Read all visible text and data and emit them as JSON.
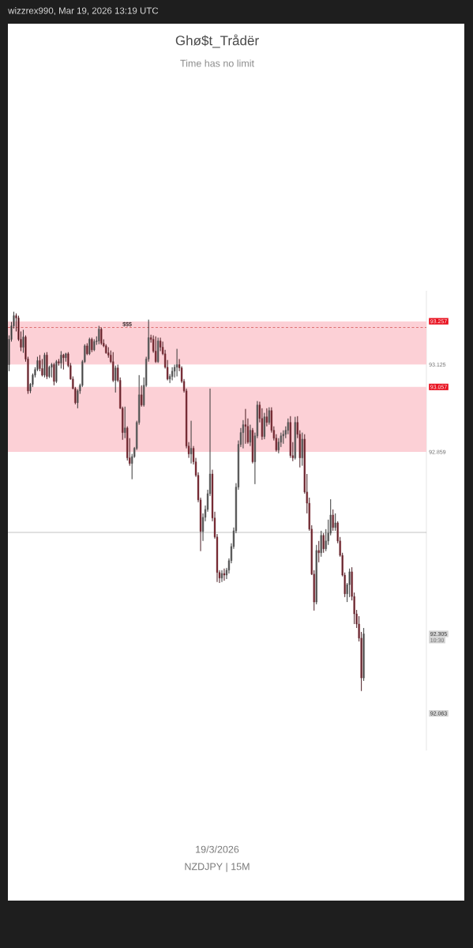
{
  "chart_data": {
    "type": "candlestick",
    "title": "Ghø$t_Trådër",
    "subtitle": "Time has no limit",
    "annotations": [
      "wizzrex990, Mar 19, 2026 13:19 UTC",
      "10:30",
      "19/3/2026",
      "NZDJPY | 15M"
    ],
    "categories": [
      null,
      null,
      null,
      null,
      null,
      null,
      null,
      null,
      null,
      null,
      null,
      null,
      null,
      null,
      null,
      null,
      null,
      null,
      null,
      null,
      null,
      null,
      null,
      null,
      null,
      null,
      null,
      null,
      null,
      null,
      null,
      null,
      null,
      null,
      null,
      null,
      null,
      null,
      null,
      null,
      null,
      null,
      null,
      null,
      null,
      null,
      null,
      null,
      null,
      null,
      null,
      null,
      null,
      null,
      null,
      null,
      null,
      null,
      null,
      null,
      null,
      null,
      null,
      null,
      null,
      null,
      null,
      null,
      null,
      null,
      null,
      null,
      null,
      null,
      null,
      null,
      null,
      null,
      null,
      null,
      null,
      null,
      null,
      null,
      null,
      null,
      null,
      null,
      null,
      null,
      null,
      null,
      null,
      null,
      null,
      null,
      null,
      null,
      null,
      null,
      null,
      null,
      null,
      null,
      null,
      null,
      null,
      null,
      null,
      null,
      null,
      null,
      null,
      null,
      null,
      null,
      null,
      null,
      null,
      null,
      null,
      null,
      null,
      null,
      null,
      null,
      null,
      null,
      null,
      null,
      null,
      null,
      null,
      null,
      null,
      null,
      null,
      null,
      null,
      null,
      null,
      null,
      null,
      null,
      null,
      null,
      null,
      null,
      null,
      null,
      null,
      null,
      null,
      null,
      null,
      null,
      null,
      null,
      null,
      null,
      null,
      null,
      null,
      null,
      null,
      null,
      null,
      null,
      null,
      null,
      null,
      null,
      null,
      null,
      null,
      null,
      null
    ],
    "ohlc": [
      [
        93.125,
        93.214,
        93.105,
        93.202
      ],
      [
        93.202,
        93.255,
        93.195,
        93.243
      ],
      [
        93.243,
        93.286,
        93.235,
        93.274
      ],
      [
        93.274,
        93.281,
        93.226,
        93.267
      ],
      [
        93.267,
        93.274,
        93.197,
        93.202
      ],
      [
        93.202,
        93.226,
        93.166,
        93.178
      ],
      [
        93.178,
        93.231,
        93.161,
        93.209
      ],
      [
        93.209,
        93.214,
        93.134,
        93.142
      ],
      [
        93.142,
        93.149,
        93.036,
        93.045
      ],
      [
        93.045,
        93.069,
        93.038,
        93.065
      ],
      [
        93.065,
        93.098,
        93.057,
        93.093
      ],
      [
        93.093,
        93.117,
        93.086,
        93.11
      ],
      [
        93.11,
        93.149,
        93.105,
        93.137
      ],
      [
        93.137,
        93.154,
        93.105,
        93.113
      ],
      [
        93.113,
        93.142,
        93.089,
        93.093
      ],
      [
        93.093,
        93.161,
        93.086,
        93.154
      ],
      [
        93.154,
        93.163,
        93.081,
        93.089
      ],
      [
        93.089,
        93.122,
        93.084,
        93.117
      ],
      [
        93.117,
        93.13,
        93.086,
        93.125
      ],
      [
        93.125,
        93.13,
        93.062,
        93.074
      ],
      [
        93.074,
        93.139,
        93.069,
        93.134
      ],
      [
        93.134,
        93.142,
        93.122,
        93.13
      ],
      [
        93.13,
        93.166,
        93.113,
        93.154
      ],
      [
        93.154,
        93.158,
        93.11,
        93.146
      ],
      [
        93.146,
        93.161,
        93.134,
        93.158
      ],
      [
        93.158,
        93.163,
        93.117,
        93.122
      ],
      [
        93.122,
        93.13,
        93.079,
        93.081
      ],
      [
        93.081,
        93.089,
        93.05,
        93.052
      ],
      [
        93.052,
        93.057,
        93.004,
        93.009
      ],
      [
        93.009,
        93.05,
        92.992,
        93.045
      ],
      [
        93.045,
        93.067,
        93.036,
        93.062
      ],
      [
        93.062,
        93.139,
        93.057,
        93.134
      ],
      [
        93.134,
        93.187,
        93.13,
        93.182
      ],
      [
        93.182,
        93.19,
        93.154,
        93.158
      ],
      [
        93.158,
        93.207,
        93.154,
        93.202
      ],
      [
        93.202,
        93.207,
        93.163,
        93.17
      ],
      [
        93.17,
        93.202,
        93.166,
        93.195
      ],
      [
        93.195,
        93.211,
        93.185,
        93.197
      ],
      [
        93.197,
        93.243,
        93.187,
        93.233
      ],
      [
        93.233,
        93.238,
        93.185,
        93.19
      ],
      [
        93.19,
        93.202,
        93.178,
        93.182
      ],
      [
        93.182,
        93.187,
        93.158,
        93.161
      ],
      [
        93.161,
        93.178,
        93.146,
        93.154
      ],
      [
        93.154,
        93.168,
        93.13,
        93.134
      ],
      [
        93.134,
        93.163,
        93.072,
        93.077
      ],
      [
        93.077,
        93.122,
        93.04,
        93.115
      ],
      [
        93.115,
        93.125,
        93.072,
        93.077
      ],
      [
        93.077,
        93.086,
        92.99,
        92.992
      ],
      [
        92.992,
        92.997,
        92.896,
        92.918
      ],
      [
        92.918,
        92.997,
        92.901,
        92.932
      ],
      [
        92.932,
        92.937,
        92.833,
        92.841
      ],
      [
        92.841,
        92.901,
        92.817,
        92.824
      ],
      [
        92.824,
        92.853,
        92.776,
        92.845
      ],
      [
        92.845,
        92.874,
        92.841,
        92.87
      ],
      [
        92.87,
        92.954,
        92.865,
        92.949
      ],
      [
        92.949,
        93.093,
        92.942,
        93.033
      ],
      [
        93.033,
        93.062,
        92.997,
        93.002
      ],
      [
        93.002,
        93.086,
        92.997,
        93.062
      ],
      [
        93.062,
        93.149,
        93.057,
        93.142
      ],
      [
        93.142,
        93.262,
        93.134,
        93.207
      ],
      [
        93.207,
        93.216,
        93.192,
        93.202
      ],
      [
        93.202,
        93.214,
        93.161,
        93.166
      ],
      [
        93.166,
        93.211,
        93.13,
        93.134
      ],
      [
        93.134,
        93.207,
        93.13,
        93.197
      ],
      [
        93.197,
        93.207,
        93.166,
        93.178
      ],
      [
        93.178,
        93.195,
        93.154,
        93.158
      ],
      [
        93.158,
        93.17,
        93.113,
        93.117
      ],
      [
        93.117,
        93.139,
        93.077,
        93.081
      ],
      [
        93.081,
        93.096,
        93.069,
        93.089
      ],
      [
        93.089,
        93.117,
        93.077,
        93.105
      ],
      [
        93.105,
        93.125,
        93.086,
        93.117
      ],
      [
        93.117,
        93.173,
        93.089,
        93.125
      ],
      [
        93.125,
        93.142,
        93.105,
        93.115
      ],
      [
        93.115,
        93.12,
        93.069,
        93.074
      ],
      [
        93.074,
        93.081,
        93.04,
        93.045
      ],
      [
        93.045,
        93.052,
        92.87,
        92.877
      ],
      [
        92.877,
        92.889,
        92.841,
        92.853
      ],
      [
        92.853,
        92.954,
        92.824,
        92.87
      ],
      [
        92.87,
        92.877,
        92.821,
        92.829
      ],
      [
        92.829,
        92.841,
        92.783,
        92.788
      ],
      [
        92.788,
        92.797,
        92.706,
        92.713
      ],
      [
        92.713,
        92.72,
        92.557,
        92.617
      ],
      [
        92.617,
        92.672,
        92.588,
        92.66
      ],
      [
        92.66,
        92.696,
        92.648,
        92.684
      ],
      [
        92.684,
        92.744,
        92.677,
        92.732
      ],
      [
        92.732,
        93.052,
        92.725,
        92.792
      ],
      [
        92.792,
        92.805,
        92.648,
        92.658
      ],
      [
        92.658,
        92.677,
        92.595,
        92.6
      ],
      [
        92.6,
        92.609,
        92.463,
        92.492
      ],
      [
        92.492,
        92.499,
        92.46,
        92.475
      ],
      [
        92.475,
        92.499,
        92.463,
        92.489
      ],
      [
        92.489,
        92.504,
        92.467,
        92.484
      ],
      [
        92.484,
        92.506,
        92.472,
        92.499
      ],
      [
        92.499,
        92.535,
        92.489,
        92.528
      ],
      [
        92.528,
        92.581,
        92.52,
        92.571
      ],
      [
        92.571,
        92.629,
        92.564,
        92.619
      ],
      [
        92.619,
        92.764,
        92.612,
        92.752
      ],
      [
        92.752,
        92.894,
        92.744,
        92.882
      ],
      [
        92.882,
        92.932,
        92.874,
        92.918
      ],
      [
        92.918,
        92.956,
        92.87,
        92.942
      ],
      [
        92.942,
        92.99,
        92.884,
        92.937
      ],
      [
        92.937,
        92.961,
        92.884,
        92.889
      ],
      [
        92.889,
        92.942,
        92.877,
        92.925
      ],
      [
        92.925,
        92.932,
        92.824,
        92.829
      ],
      [
        92.829,
        92.918,
        92.761,
        92.908
      ],
      [
        92.908,
        93.014,
        92.901,
        93.002
      ],
      [
        93.002,
        93.012,
        92.949,
        92.961
      ],
      [
        92.961,
        92.992,
        92.896,
        92.906
      ],
      [
        92.906,
        92.978,
        92.898,
        92.966
      ],
      [
        92.966,
        92.992,
        92.937,
        92.949
      ],
      [
        92.949,
        92.995,
        92.942,
        92.985
      ],
      [
        92.985,
        92.995,
        92.918,
        92.925
      ],
      [
        92.925,
        92.937,
        92.894,
        92.901
      ],
      [
        92.901,
        92.913,
        92.86,
        92.865
      ],
      [
        92.865,
        92.901,
        92.855,
        92.889
      ],
      [
        92.889,
        92.918,
        92.874,
        92.908
      ],
      [
        92.908,
        92.925,
        92.884,
        92.913
      ],
      [
        92.913,
        92.937,
        92.901,
        92.925
      ],
      [
        92.925,
        92.961,
        92.913,
        92.949
      ],
      [
        92.949,
        92.968,
        92.841,
        92.848
      ],
      [
        92.848,
        92.889,
        92.831,
        92.841
      ],
      [
        92.841,
        92.966,
        92.836,
        92.949
      ],
      [
        92.949,
        92.968,
        92.901,
        92.913
      ],
      [
        92.913,
        92.925,
        92.812,
        92.841
      ],
      [
        92.841,
        92.918,
        92.817,
        92.898
      ],
      [
        92.898,
        92.913,
        92.732,
        92.737
      ],
      [
        92.737,
        92.792,
        92.672,
        92.703
      ],
      [
        92.703,
        92.72,
        92.619,
        92.624
      ],
      [
        92.624,
        92.636,
        92.484,
        92.487
      ],
      [
        92.487,
        92.499,
        92.376,
        92.402
      ],
      [
        92.402,
        92.576,
        92.395,
        92.559
      ],
      [
        92.559,
        92.588,
        92.523,
        92.552
      ],
      [
        92.552,
        92.619,
        92.54,
        92.605
      ],
      [
        92.605,
        92.612,
        92.552,
        92.564
      ],
      [
        92.564,
        92.624,
        92.557,
        92.588
      ],
      [
        92.588,
        92.653,
        92.576,
        92.612
      ],
      [
        92.612,
        92.715,
        92.605,
        92.667
      ],
      [
        92.667,
        92.684,
        92.619,
        92.629
      ],
      [
        92.629,
        92.672,
        92.619,
        92.643
      ],
      [
        92.643,
        92.648,
        92.581,
        92.588
      ],
      [
        92.588,
        92.6,
        92.54,
        92.544
      ],
      [
        92.544,
        92.552,
        92.48,
        92.484
      ],
      [
        92.484,
        92.492,
        92.417,
        92.427
      ],
      [
        92.427,
        92.46,
        92.402,
        92.455
      ],
      [
        92.455,
        92.504,
        92.417,
        92.494
      ],
      [
        92.494,
        92.508,
        92.407,
        92.419
      ],
      [
        92.419,
        92.431,
        92.335,
        92.366
      ],
      [
        92.366,
        92.378,
        92.323,
        92.335
      ],
      [
        92.335,
        92.359,
        92.282,
        92.292
      ],
      [
        92.292,
        92.311,
        92.131,
        92.171
      ],
      [
        92.171,
        92.323,
        92.162,
        92.305
      ],
      null,
      null,
      null,
      null,
      null,
      null,
      null,
      null,
      null,
      null,
      null,
      null,
      null,
      null,
      null,
      null,
      null,
      null,
      null,
      null,
      null,
      null,
      null,
      null,
      null,
      null
    ],
    "colors": [
      "#8a8a8a",
      "#8a8a8a",
      "#8a8a8a",
      "#b5424f",
      "#b5424f",
      "#b5424f",
      "#8a8a8a",
      "#b5424f",
      "#b5424f",
      "#8a8a8a",
      "#8a8a8a",
      "#8a8a8a",
      "#8a8a8a",
      "#b5424f",
      "#b5424f",
      "#8a8a8a",
      "#b5424f",
      "#8a8a8a",
      "#8a8a8a",
      "#b5424f",
      "#8a8a8a",
      "#b5424f",
      "#8a8a8a",
      "#b5424f",
      "#8a8a8a",
      "#b5424f",
      "#b5424f",
      "#b5424f",
      "#b5424f",
      "#8a8a8a",
      "#8a8a8a",
      "#8a8a8a",
      "#8a8a8a",
      "#b5424f",
      "#8a8a8a",
      "#b5424f",
      "#8a8a8a",
      "#8a8a8a",
      "#8a8a8a",
      "#b5424f",
      "#b5424f",
      "#b5424f",
      "#b5424f",
      "#b5424f",
      "#b5424f",
      "#8a8a8a",
      "#b5424f",
      "#b5424f",
      "#b5424f",
      "#8a8a8a",
      "#b5424f",
      "#b5424f",
      "#8a8a8a",
      "#8a8a8a",
      "#8a8a8a",
      "#8a8a8a",
      "#b5424f",
      "#8a8a8a",
      "#8a8a8a",
      "#8a8a8a",
      "#b5424f",
      "#b5424f",
      "#b5424f",
      "#8a8a8a",
      "#b5424f",
      "#b5424f",
      "#b5424f",
      "#b5424f",
      "#8a8a8a",
      "#8a8a8a",
      "#8a8a8a",
      "#8a8a8a",
      "#b5424f",
      "#b5424f",
      "#b5424f",
      "#b5424f",
      "#b5424f",
      "#8a8a8a",
      "#b5424f",
      "#b5424f",
      "#b5424f",
      "#b5424f",
      "#8a8a8a",
      "#8a8a8a",
      "#8a8a8a",
      "#8a8a8a",
      "#b5424f",
      "#b5424f",
      "#b5424f",
      "#b5424f",
      "#8a8a8a",
      "#b5424f",
      "#8a8a8a",
      "#8a8a8a",
      "#8a8a8a",
      "#8a8a8a",
      "#8a8a8a",
      "#8a8a8a",
      "#8a8a8a",
      "#8a8a8a",
      "#b5424f",
      "#b5424f",
      "#8a8a8a",
      "#b5424f",
      "#8a8a8a",
      "#8a8a8a",
      "#b5424f",
      "#b5424f",
      "#8a8a8a",
      "#b5424f",
      "#8a8a8a",
      "#b5424f",
      "#b5424f",
      "#b5424f",
      "#8a8a8a",
      "#8a8a8a",
      "#8a8a8a",
      "#8a8a8a",
      "#8a8a8a",
      "#b5424f",
      "#b5424f",
      "#8a8a8a",
      "#b5424f",
      "#b5424f",
      "#8a8a8a",
      "#b5424f",
      "#b5424f",
      "#b5424f",
      "#b5424f",
      "#b5424f",
      "#8a8a8a",
      "#b5424f",
      "#8a8a8a",
      "#b5424f",
      "#8a8a8a",
      "#8a8a8a",
      "#8a8a8a",
      "#b5424f",
      "#8a8a8a",
      "#b5424f",
      "#b5424f",
      "#b5424f",
      "#b5424f",
      "#8a8a8a",
      "#8a8a8a",
      "#b5424f",
      "#b5424f",
      "#b5424f",
      "#b5424f",
      "#b5424f",
      "#8a8a8a",
      null,
      null,
      null,
      null,
      null,
      null,
      null,
      null,
      null,
      null,
      null,
      null,
      null,
      null,
      null,
      null,
      null,
      null,
      null,
      null,
      null,
      null,
      null,
      null,
      null,
      null
    ],
    "ylim": [
      91.95,
      93.35
    ],
    "yticks": [
      92.063,
      92.305,
      92.859,
      93.057,
      93.125,
      93.257
    ],
    "tick_labels": "y",
    "bands": [
      {
        "axis": "y",
        "from": 93.125,
        "to": 93.257,
        "color": "#fcd0d6"
      },
      {
        "axis": "y",
        "from": 92.859,
        "to": 93.057,
        "color": "#fcd0d6"
      }
    ],
    "ref_lines": [
      {
        "axis": "y",
        "value": 93.238,
        "label": "$$$",
        "color": "#c62828",
        "line_style": "dashed"
      },
      {
        "axis": "y",
        "value": 92.614,
        "color": "#3a3a3a"
      }
    ]
  }
}
